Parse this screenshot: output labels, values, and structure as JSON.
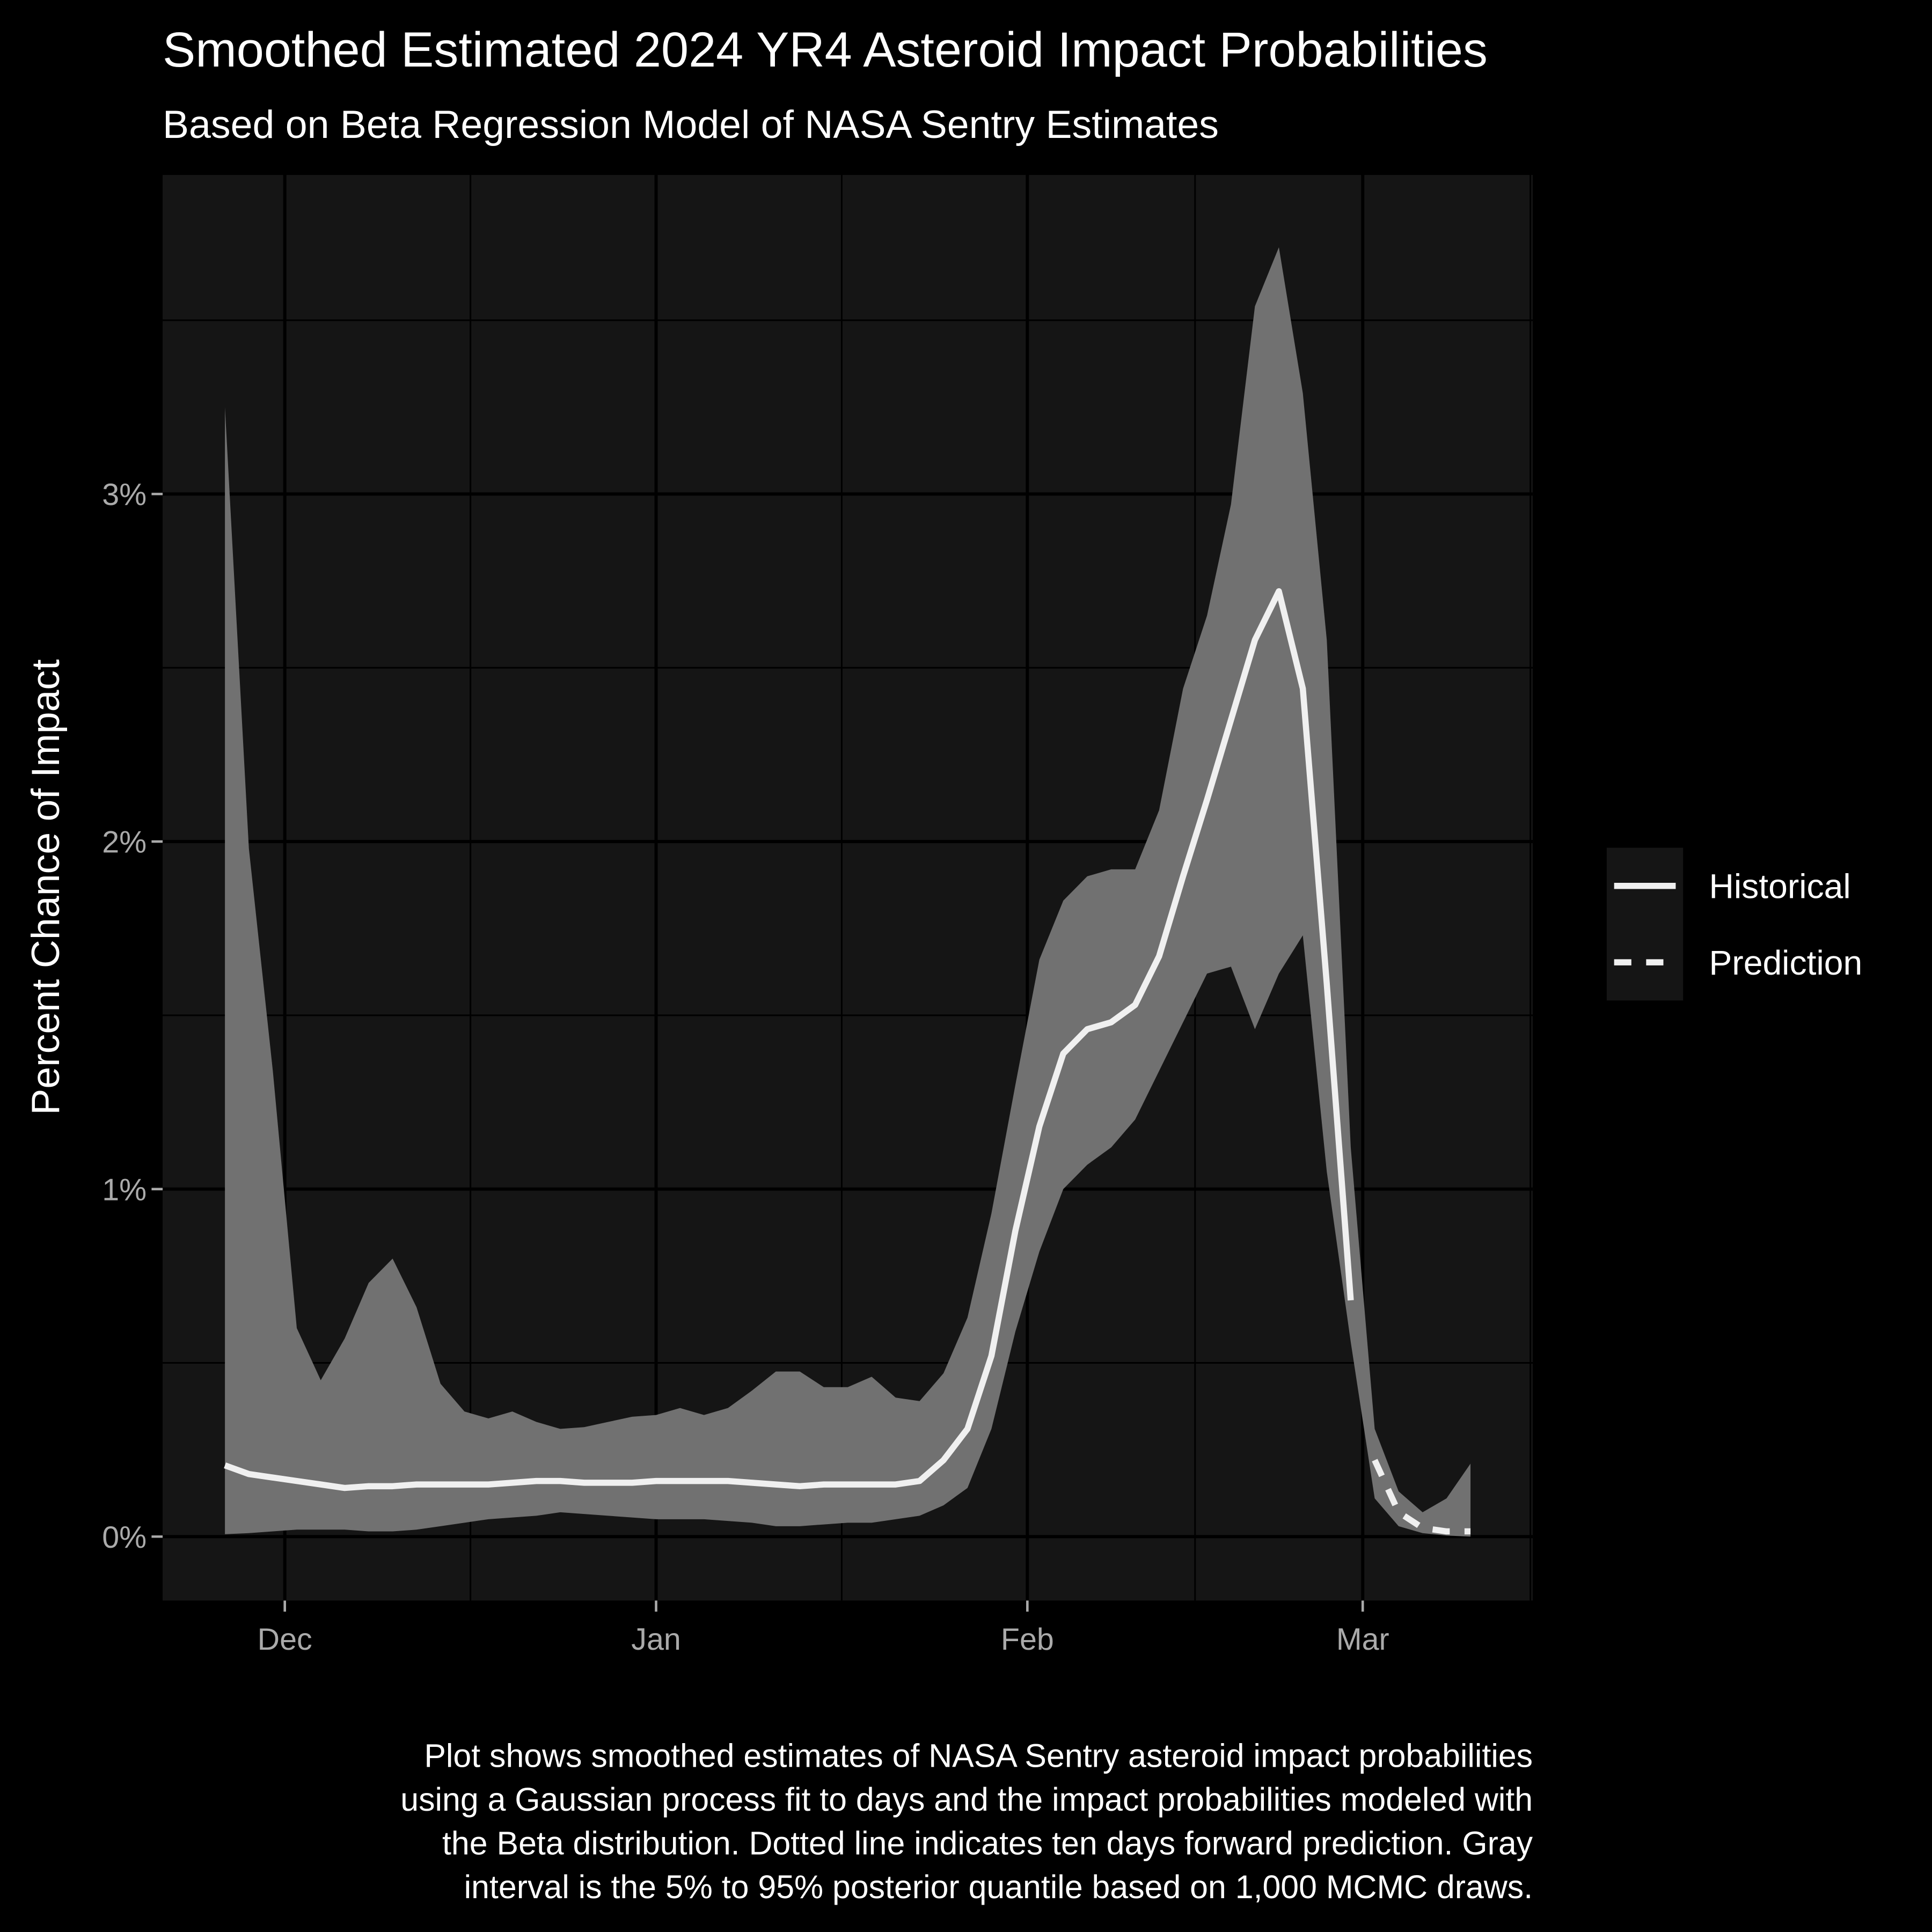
{
  "chart_data": {
    "type": "line",
    "title": "Smoothed Estimated 2024 YR4 Asteroid Impact Probabilities",
    "subtitle": "Based on Beta Regression Model of NASA Sentry Estimates",
    "ylabel": "Percent Chance of Impact",
    "caption": [
      "Plot shows smoothed estimates of NASA Sentry asteroid impact probabilities",
      "using a Gaussian process fit to days and the impact probabilities modeled with",
      "the Beta distribution. Dotted line indicates ten days forward prediction. Gray",
      "interval is the 5% to 95% posterior quantile based on 1,000 MCMC draws."
    ],
    "x": [
      -5,
      -3,
      -1,
      1,
      3,
      5,
      7,
      9,
      11,
      13,
      15,
      17,
      19,
      21,
      23,
      25,
      27,
      29,
      31,
      33,
      35,
      37,
      39,
      41,
      43,
      45,
      47,
      49,
      51,
      53,
      55,
      57,
      59,
      61,
      63,
      65,
      67,
      69,
      71,
      73,
      75,
      77,
      79,
      81,
      83,
      85,
      87,
      89,
      91,
      93,
      95,
      97,
      99
    ],
    "xlim": [
      -10.2,
      104.2
    ],
    "xticks": [
      {
        "value": 0,
        "label": "Dec"
      },
      {
        "value": 31,
        "label": "Jan"
      },
      {
        "value": 62,
        "label": "Feb"
      },
      {
        "value": 90,
        "label": "Mar"
      }
    ],
    "ylim": [
      -0.184,
      3.918
    ],
    "yticks": [
      {
        "value": 0,
        "label": "0%"
      },
      {
        "value": 1,
        "label": "1%"
      },
      {
        "value": 2,
        "label": "2%"
      },
      {
        "value": 3,
        "label": "3%"
      }
    ],
    "grid": true,
    "legend_position": "right",
    "band": {
      "color": "#717171",
      "upper": [
        3.25,
        1.98,
        1.34,
        0.6,
        0.45,
        0.57,
        0.73,
        0.8,
        0.66,
        0.44,
        0.36,
        0.34,
        0.36,
        0.33,
        0.31,
        0.315,
        0.33,
        0.345,
        0.35,
        0.37,
        0.35,
        0.37,
        0.42,
        0.475,
        0.475,
        0.43,
        0.43,
        0.46,
        0.4,
        0.39,
        0.47,
        0.63,
        0.93,
        1.3,
        1.66,
        1.83,
        1.9,
        1.92,
        1.92,
        2.09,
        2.44,
        2.65,
        2.97,
        3.54,
        3.71,
        3.29,
        2.58,
        1.12,
        0.31,
        0.13,
        0.07,
        0.11,
        0.21
      ],
      "lower": [
        0.007,
        0.01,
        0.015,
        0.02,
        0.02,
        0.02,
        0.015,
        0.015,
        0.02,
        0.03,
        0.04,
        0.05,
        0.055,
        0.06,
        0.07,
        0.065,
        0.06,
        0.055,
        0.05,
        0.05,
        0.05,
        0.045,
        0.04,
        0.03,
        0.03,
        0.035,
        0.04,
        0.04,
        0.05,
        0.06,
        0.09,
        0.14,
        0.31,
        0.59,
        0.82,
        1.0,
        1.07,
        1.12,
        1.2,
        1.34,
        1.48,
        1.62,
        1.64,
        1.46,
        1.62,
        1.73,
        1.05,
        0.56,
        0.11,
        0.03,
        0.01,
        0.003,
        0
      ]
    },
    "series": [
      {
        "name": "Historical",
        "color": "#f0f0f0",
        "dash": "solid",
        "values": [
          0.205,
          0.18,
          0.17,
          0.16,
          0.15,
          0.14,
          0.145,
          0.145,
          0.15,
          0.15,
          0.15,
          0.15,
          0.155,
          0.16,
          0.16,
          0.155,
          0.155,
          0.155,
          0.16,
          0.16,
          0.16,
          0.16,
          0.155,
          0.15,
          0.145,
          0.15,
          0.15,
          0.15,
          0.15,
          0.16,
          0.22,
          0.31,
          0.52,
          0.88,
          1.18,
          1.39,
          1.46,
          1.48,
          1.53,
          1.67,
          1.9,
          2.12,
          2.35,
          2.58,
          2.72,
          2.44,
          1.59,
          0.68,
          null,
          null,
          null,
          null,
          null
        ]
      },
      {
        "name": "Prediction",
        "color": "#f0f0f0",
        "dash": "dashed",
        "values": [
          null,
          null,
          null,
          null,
          null,
          null,
          null,
          null,
          null,
          null,
          null,
          null,
          null,
          null,
          null,
          null,
          null,
          null,
          null,
          null,
          null,
          null,
          null,
          null,
          null,
          null,
          null,
          null,
          null,
          null,
          null,
          null,
          null,
          null,
          null,
          null,
          null,
          null,
          null,
          null,
          null,
          null,
          null,
          null,
          null,
          null,
          null,
          null,
          0.22,
          0.07,
          0.025,
          0.015,
          0.015
        ]
      }
    ]
  }
}
